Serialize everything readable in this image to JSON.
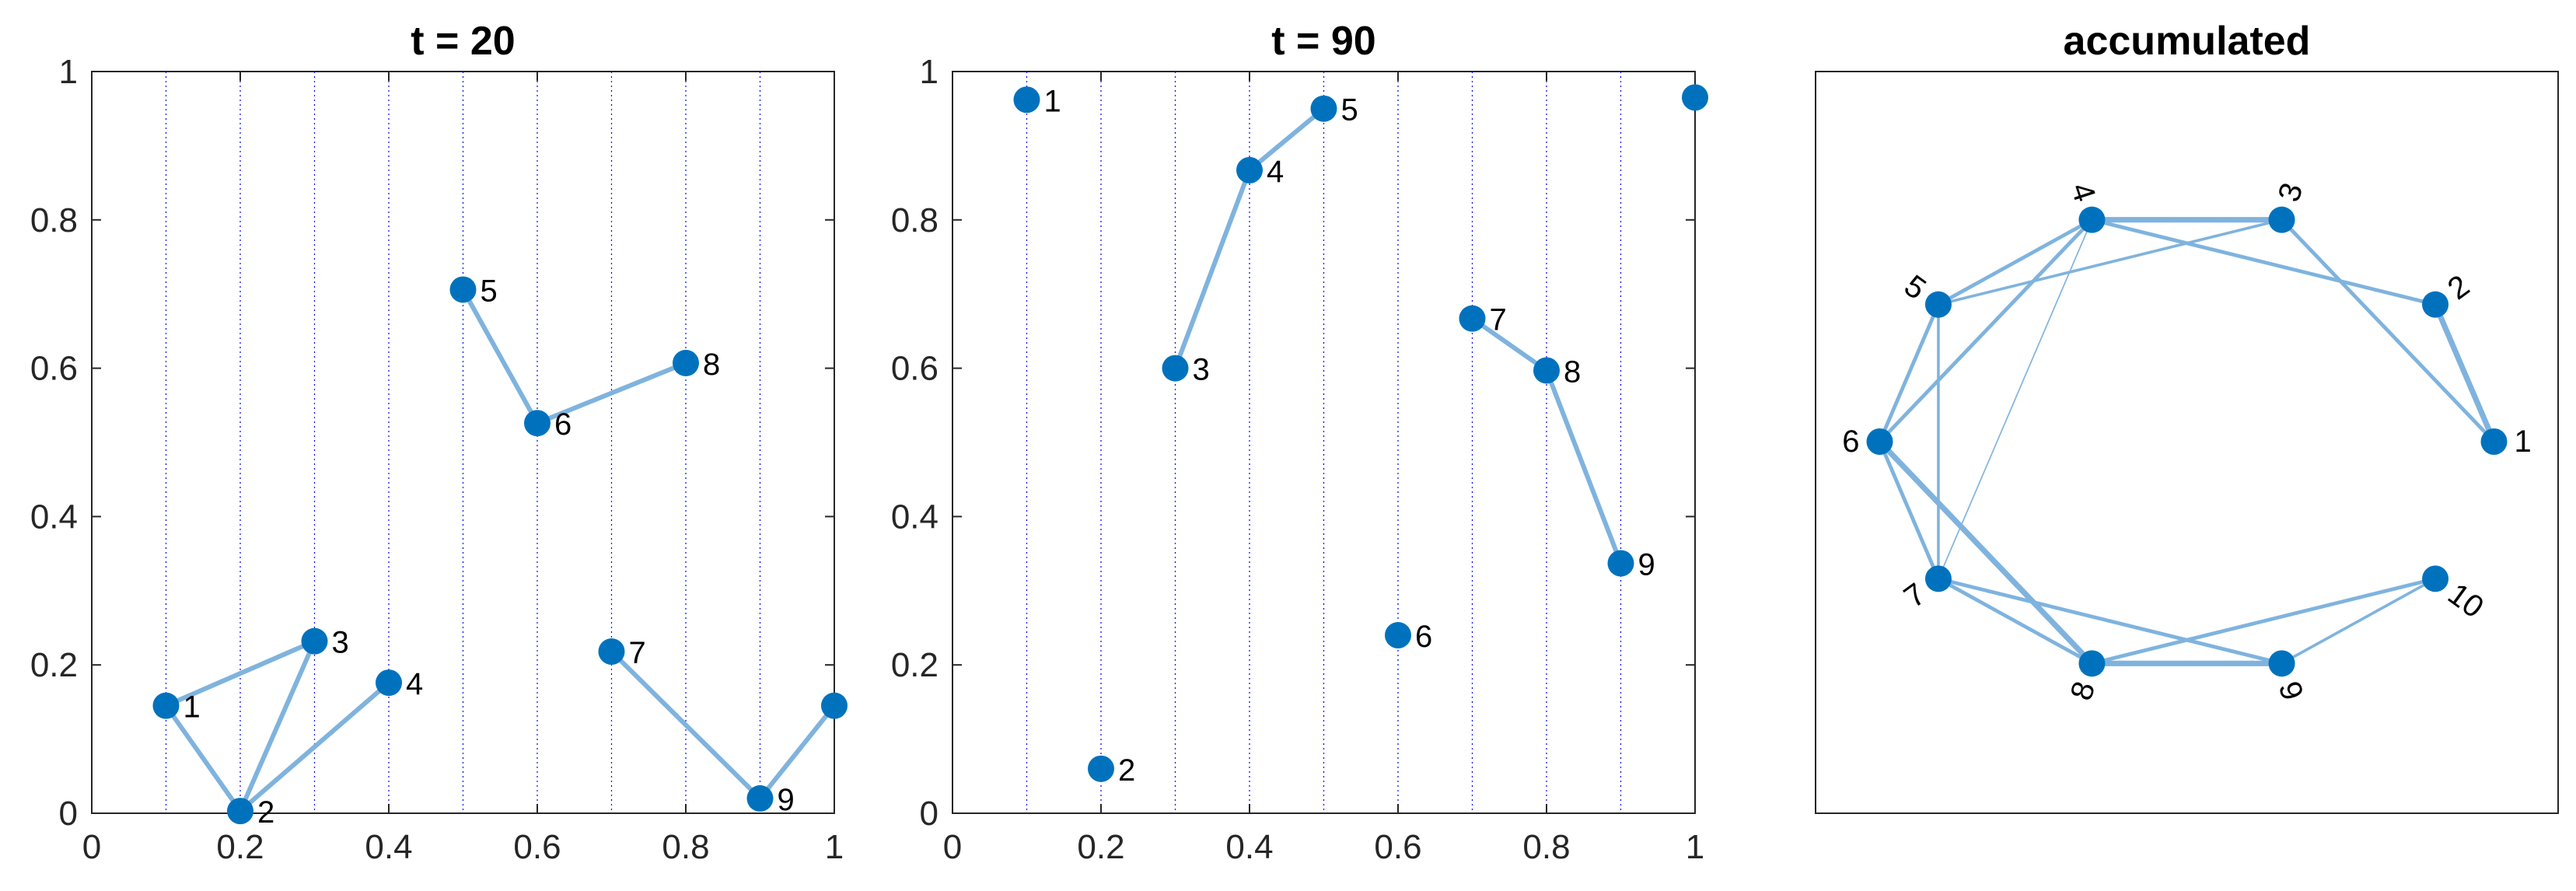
{
  "colors": {
    "node": "#0072BD",
    "edge": "#7FB3DE",
    "gridline": "#0000FF",
    "axis": "#262626"
  },
  "chart_data": [
    {
      "type": "scatter",
      "title": "t = 20",
      "xlim": [
        0,
        1
      ],
      "ylim": [
        0,
        1
      ],
      "xticks": [
        "0",
        "0.2",
        "0.4",
        "0.6",
        "0.8",
        "1"
      ],
      "yticks": [
        "0",
        "0.2",
        "0.4",
        "0.6",
        "0.8",
        "1"
      ],
      "vertical_dotted_lines_x": [
        0.1,
        0.2,
        0.3,
        0.4,
        0.5,
        0.6,
        0.7,
        0.8,
        0.9
      ],
      "nodes": [
        {
          "label": "1",
          "x": 0.1,
          "y": 0.145
        },
        {
          "label": "2",
          "x": 0.2,
          "y": 0.003
        },
        {
          "label": "3",
          "x": 0.3,
          "y": 0.232
        },
        {
          "label": "4",
          "x": 0.4,
          "y": 0.176
        },
        {
          "label": "5",
          "x": 0.5,
          "y": 0.706
        },
        {
          "label": "6",
          "x": 0.6,
          "y": 0.526
        },
        {
          "label": "7",
          "x": 0.7,
          "y": 0.218
        },
        {
          "label": "8",
          "x": 0.8,
          "y": 0.607
        },
        {
          "label": "9",
          "x": 0.9,
          "y": 0.02
        },
        {
          "label": "",
          "x": 1.0,
          "y": 0.145
        }
      ],
      "edges": [
        [
          0,
          2
        ],
        [
          0,
          1
        ],
        [
          1,
          2
        ],
        [
          1,
          3
        ],
        [
          4,
          5
        ],
        [
          5,
          7
        ],
        [
          6,
          8
        ],
        [
          8,
          9
        ]
      ]
    },
    {
      "type": "scatter",
      "title": "t = 90",
      "xlim": [
        0,
        1
      ],
      "ylim": [
        0,
        1
      ],
      "xticks": [
        "0",
        "0.2",
        "0.4",
        "0.6",
        "0.8",
        "1"
      ],
      "yticks": [
        "0",
        "0.2",
        "0.4",
        "0.6",
        "0.8",
        "1"
      ],
      "vertical_dotted_lines_x": [
        0.1,
        0.2,
        0.3,
        0.4,
        0.5,
        0.6,
        0.7,
        0.8,
        0.9
      ],
      "nodes": [
        {
          "label": "1",
          "x": 0.1,
          "y": 0.962
        },
        {
          "label": "2",
          "x": 0.2,
          "y": 0.06
        },
        {
          "label": "3",
          "x": 0.3,
          "y": 0.6
        },
        {
          "label": "4",
          "x": 0.4,
          "y": 0.867
        },
        {
          "label": "5",
          "x": 0.5,
          "y": 0.95
        },
        {
          "label": "6",
          "x": 0.6,
          "y": 0.24
        },
        {
          "label": "7",
          "x": 0.7,
          "y": 0.667
        },
        {
          "label": "8",
          "x": 0.8,
          "y": 0.597
        },
        {
          "label": "9",
          "x": 0.9,
          "y": 0.337
        },
        {
          "label": "",
          "x": 1.0,
          "y": 0.965
        }
      ],
      "edges": [
        [
          2,
          3
        ],
        [
          3,
          4
        ],
        [
          6,
          7
        ],
        [
          7,
          8
        ]
      ]
    },
    {
      "type": "network",
      "title": "accumulated",
      "layout": "circle",
      "nodes": [
        "1",
        "2",
        "3",
        "4",
        "5",
        "6",
        "7",
        "8",
        "9",
        "10"
      ],
      "edges": [
        {
          "source": "1",
          "target": "2",
          "weight": 3
        },
        {
          "source": "1",
          "target": "3",
          "weight": 2
        },
        {
          "source": "2",
          "target": "4",
          "weight": 2
        },
        {
          "source": "3",
          "target": "4",
          "weight": 3
        },
        {
          "source": "3",
          "target": "5",
          "weight": 1.5
        },
        {
          "source": "4",
          "target": "5",
          "weight": 2
        },
        {
          "source": "4",
          "target": "6",
          "weight": 2
        },
        {
          "source": "4",
          "target": "7",
          "weight": 0.7
        },
        {
          "source": "5",
          "target": "6",
          "weight": 2
        },
        {
          "source": "5",
          "target": "7",
          "weight": 1.5
        },
        {
          "source": "6",
          "target": "7",
          "weight": 2
        },
        {
          "source": "6",
          "target": "8",
          "weight": 3
        },
        {
          "source": "7",
          "target": "8",
          "weight": 2
        },
        {
          "source": "7",
          "target": "9",
          "weight": 2
        },
        {
          "source": "8",
          "target": "9",
          "weight": 3
        },
        {
          "source": "8",
          "target": "10",
          "weight": 2
        },
        {
          "source": "9",
          "target": "10",
          "weight": 1.5
        }
      ]
    }
  ]
}
